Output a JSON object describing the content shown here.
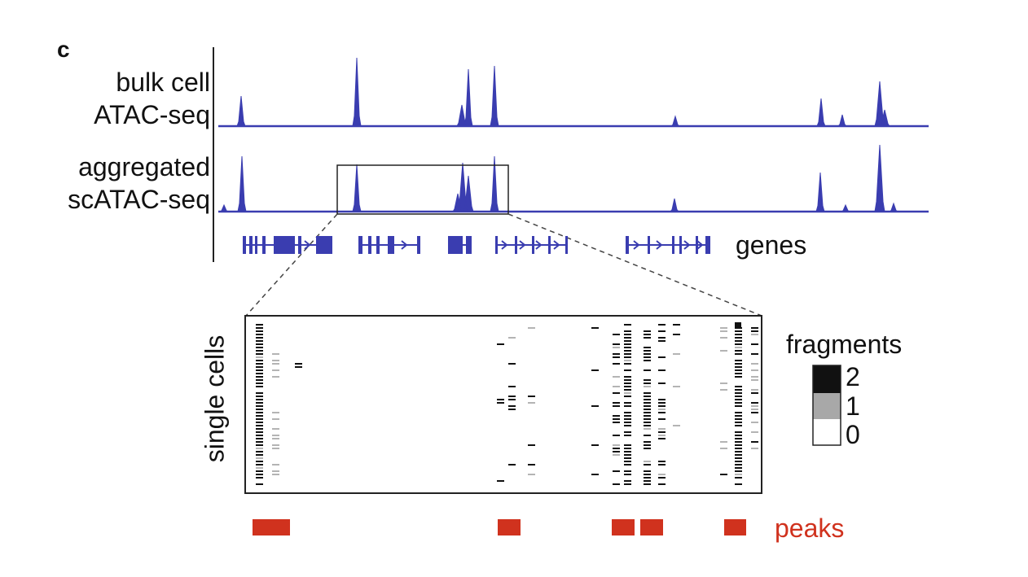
{
  "panel_letter": "c",
  "tracks": {
    "bulk": {
      "label_line1": "bulk cell",
      "label_line2": "ATAC-seq"
    },
    "aggregated": {
      "label_line1": "aggregated",
      "label_line2": "scATAC-seq"
    }
  },
  "genes_label": "genes",
  "single_cells_label": "single cells",
  "legend": {
    "title": "fragments",
    "levels": [
      {
        "label": "2",
        "color": "#111111"
      },
      {
        "label": "1",
        "color": "#a8a8a8"
      },
      {
        "label": "0",
        "color": "#ffffff"
      }
    ]
  },
  "peaks_label": "peaks",
  "colors": {
    "signal": "#3a3db0",
    "peaks": "#d0321e",
    "frame": "#222222"
  }
}
